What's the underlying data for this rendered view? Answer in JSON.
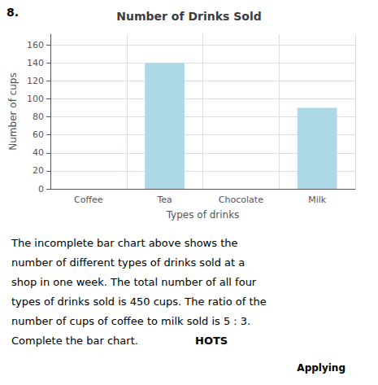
{
  "chart_data": {
    "type": "bar",
    "title": "Number of Drinks Sold",
    "x_label": "Types of drinks",
    "y_label": "Number of cups",
    "categories": [
      "Coffee",
      "Tea",
      "Chocolate",
      "Milk"
    ],
    "values": [
      null,
      140,
      null,
      90
    ],
    "color": "#add8e6",
    "ylim": [
      0,
      172
    ],
    "yticks": [
      0,
      20,
      40,
      60,
      80,
      100,
      120,
      140,
      160
    ],
    "grid": true,
    "annotations": [
      "8.",
      "The incomplete bar chart above shows the",
      "number of different types of drinks sold at a",
      "shop in one week. The total number of all four",
      "types of drinks sold is 450 cups. The ratio of the",
      "number of cups of coffee to milk sold is 5 : 3.",
      "Complete the bar chart.",
      "HOTS",
      "Applying"
    ]
  }
}
